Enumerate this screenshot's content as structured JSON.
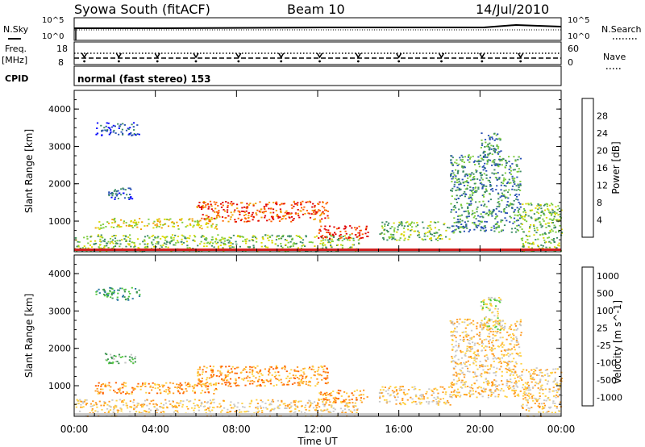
{
  "header": {
    "station": "Syowa South (fitACF)",
    "beam": "Beam 10",
    "date": "14/Jul/2010"
  },
  "top_panels": {
    "nsky_label": "N.Sky",
    "nsky_ticks": [
      "10^5",
      "10^0"
    ],
    "nsearch_label": "N.Search",
    "nsearch_ticks": [
      "10^5",
      "10^0"
    ],
    "freq_label": "Freq.",
    "freq_unit": "[MHz]",
    "freq_ticks": [
      "18",
      "8"
    ],
    "nave_label": "Nave",
    "nave_ticks": [
      "60",
      "0"
    ],
    "cpid_label": "CPID",
    "cpid_text": "normal (fast stereo) 153"
  },
  "chart_data": [
    {
      "type": "heatmap",
      "title": "",
      "xlabel": "Time UT",
      "ylabel": "Slant Range [km]",
      "x_ticks": [
        "00:00",
        "04:00",
        "08:00",
        "12:00",
        "16:00",
        "20:00",
        "00:00"
      ],
      "x_range_hours": [
        0,
        24
      ],
      "y_ticks": [
        1000,
        2000,
        3000,
        4000
      ],
      "ylim": [
        180,
        4500
      ],
      "colorbar": {
        "label": "Power [dB]",
        "ticks": [
          "4",
          "8",
          "12",
          "16",
          "20",
          "24",
          "28"
        ],
        "colors": [
          "#0000ff",
          "#2850b4",
          "#3c8c64",
          "#7ccc3c",
          "#d8d800",
          "#f0a000",
          "#ff6000",
          "#e00000"
        ]
      },
      "regions": [
        {
          "t0": 1.0,
          "t1": 3.2,
          "r0": 3300,
          "r1": 3650,
          "level": 1
        },
        {
          "t0": 1.5,
          "t1": 3.0,
          "r0": 1600,
          "r1": 1900,
          "level": 1
        },
        {
          "t0": 0.0,
          "t1": 14.0,
          "r0": 200,
          "r1": 650,
          "level": 3
        },
        {
          "t0": 1.0,
          "t1": 7.0,
          "r0": 800,
          "r1": 1100,
          "level": 4
        },
        {
          "t0": 6.0,
          "t1": 12.5,
          "r0": 1000,
          "r1": 1550,
          "level": 6
        },
        {
          "t0": 12.0,
          "t1": 14.5,
          "r0": 550,
          "r1": 900,
          "level": 7
        },
        {
          "t0": 15.0,
          "t1": 18.5,
          "r0": 500,
          "r1": 1000,
          "level": 3
        },
        {
          "t0": 18.5,
          "t1": 22.0,
          "r0": 700,
          "r1": 2800,
          "level": 2
        },
        {
          "t0": 20.0,
          "t1": 21.0,
          "r0": 2500,
          "r1": 3400,
          "level": 2
        },
        {
          "t0": 22.0,
          "t1": 24.0,
          "r0": 200,
          "r1": 1500,
          "level": 3
        }
      ]
    },
    {
      "type": "heatmap",
      "title": "",
      "xlabel": "Time UT",
      "ylabel": "Slant Range [km]",
      "x_ticks": [
        "00:00",
        "04:00",
        "08:00",
        "12:00",
        "16:00",
        "20:00",
        "00:00"
      ],
      "x_range_hours": [
        0,
        24
      ],
      "y_ticks": [
        1000,
        2000,
        3000,
        4000
      ],
      "ylim": [
        180,
        4500
      ],
      "colorbar": {
        "label": "Velocity [m s^-1]",
        "ticks": [
          "1000",
          "500",
          "100",
          "25",
          "-25",
          "-100",
          "-500",
          "-1000"
        ],
        "colors": [
          "#2040c0",
          "#2878a0",
          "#3c9650",
          "#50c83c",
          "#c8c8c8",
          "#ffd040",
          "#ff9a20",
          "#ff6000",
          "#e00000"
        ]
      },
      "regions": [
        {
          "t0": 1.0,
          "t1": 3.2,
          "r0": 3300,
          "r1": 3650,
          "level": 2
        },
        {
          "t0": 1.5,
          "t1": 3.0,
          "r0": 1600,
          "r1": 1900,
          "level": 3
        },
        {
          "t0": 0.0,
          "t1": 14.0,
          "r0": 200,
          "r1": 650,
          "level": 5
        },
        {
          "t0": 1.0,
          "t1": 7.0,
          "r0": 800,
          "r1": 1100,
          "level": 6
        },
        {
          "t0": 6.0,
          "t1": 12.5,
          "r0": 1000,
          "r1": 1550,
          "level": 6
        },
        {
          "t0": 12.0,
          "t1": 14.5,
          "r0": 550,
          "r1": 900,
          "level": 6
        },
        {
          "t0": 15.0,
          "t1": 18.5,
          "r0": 500,
          "r1": 1000,
          "level": 5
        },
        {
          "t0": 18.5,
          "t1": 22.0,
          "r0": 700,
          "r1": 2800,
          "level": 5
        },
        {
          "t0": 20.0,
          "t1": 21.0,
          "r0": 2500,
          "r1": 3400,
          "level": 4
        },
        {
          "t0": 22.0,
          "t1": 24.0,
          "r0": 200,
          "r1": 1500,
          "level": 5
        }
      ]
    }
  ]
}
